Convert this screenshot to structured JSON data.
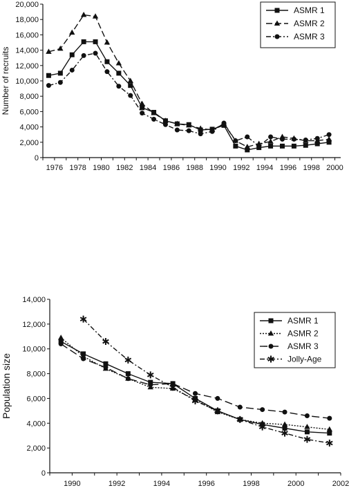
{
  "chart_data": [
    {
      "type": "line",
      "title": "",
      "xlabel": "",
      "ylabel": "Number of recruits",
      "xlim": [
        1975,
        2000.5
      ],
      "ylim": [
        0,
        20000
      ],
      "x_ticks": [
        "1976",
        "1978",
        "1980",
        "1982",
        "1984",
        "1986",
        "1988",
        "1990",
        "1992",
        "1994",
        "1996",
        "1998",
        "2000"
      ],
      "y_ticks": [
        "0",
        "2,000",
        "4,000",
        "6,000",
        "8,000",
        "10,000",
        "12,000",
        "14,000",
        "16,000",
        "18,000",
        "20,000"
      ],
      "legend": "top-right",
      "grid": false,
      "x": [
        1975.5,
        1976.5,
        1977.5,
        1978.5,
        1979.5,
        1980.5,
        1981.5,
        1982.5,
        1983.5,
        1984.5,
        1985.5,
        1986.5,
        1987.5,
        1988.5,
        1989.5,
        1990.5,
        1991.5,
        1992.5,
        1993.5,
        1994.5,
        1995.5,
        1996.5,
        1997.5,
        1998.5,
        1999.5
      ],
      "series": [
        {
          "name": "ASMR 1",
          "marker": "square",
          "dash": "solid",
          "values": [
            10700,
            11000,
            13400,
            15100,
            15100,
            12500,
            11000,
            9400,
            6500,
            5900,
            4800,
            4400,
            4300,
            3600,
            3700,
            4200,
            1500,
            1000,
            1300,
            1500,
            1500,
            1500,
            1600,
            1800,
            2000
          ]
        },
        {
          "name": "ASMR 2",
          "marker": "triangle",
          "dash": "dash",
          "values": [
            13800,
            14200,
            16300,
            18600,
            18400,
            15000,
            12300,
            10000,
            7000,
            5800,
            4800,
            4400,
            4200,
            3800,
            3600,
            4400,
            2200,
            1400,
            1800,
            2100,
            2700,
            2500,
            2200,
            2200,
            2400
          ]
        },
        {
          "name": "ASMR 3",
          "marker": "circle",
          "dash": "dashdot",
          "values": [
            9400,
            9800,
            11400,
            13300,
            13600,
            11200,
            9300,
            8100,
            5800,
            5000,
            4300,
            3600,
            3500,
            3100,
            3400,
            4500,
            2200,
            2700,
            1500,
            2700,
            2400,
            2400,
            2300,
            2500,
            3000
          ]
        }
      ]
    },
    {
      "type": "line",
      "title": "",
      "xlabel": "",
      "ylabel": "Population size",
      "xlim": [
        1989,
        2002
      ],
      "ylim": [
        0,
        14000
      ],
      "x_ticks": [
        "1990",
        "1992",
        "1994",
        "1996",
        "1998",
        "2000",
        "2002"
      ],
      "y_ticks": [
        "0",
        "2,000",
        "4,000",
        "6,000",
        "8,000",
        "10,000",
        "12,000",
        "14,000"
      ],
      "legend": "top-right",
      "grid": false,
      "x": [
        1989.5,
        1990.5,
        1991.5,
        1992.5,
        1993.5,
        1994.5,
        1995.5,
        1996.5,
        1997.5,
        1998.5,
        1999.5,
        2000.5,
        2001.5
      ],
      "series": [
        {
          "name": "ASMR 1",
          "marker": "square",
          "dash": "solid",
          "values": [
            10600,
            9600,
            8800,
            8000,
            7300,
            7200,
            6000,
            5000,
            4300,
            3900,
            3600,
            3300,
            3200
          ]
        },
        {
          "name": "ASMR 2",
          "marker": "triangle",
          "dash": "dot",
          "values": [
            10900,
            9400,
            8400,
            7600,
            6900,
            6800,
            5900,
            4900,
            4300,
            4000,
            3900,
            3700,
            3500
          ]
        },
        {
          "name": "ASMR 3",
          "marker": "circle",
          "dash": "longdash",
          "values": [
            10400,
            9200,
            8500,
            7600,
            7100,
            7200,
            6400,
            6000,
            5300,
            5100,
            4900,
            4600,
            4400
          ]
        },
        {
          "name": "Jolly-Age",
          "marker": "star",
          "dash": "dashdot",
          "values": [
            null,
            12400,
            10600,
            9100,
            7900,
            6900,
            5800,
            5000,
            4300,
            3700,
            3200,
            2700,
            2400
          ]
        }
      ]
    }
  ]
}
